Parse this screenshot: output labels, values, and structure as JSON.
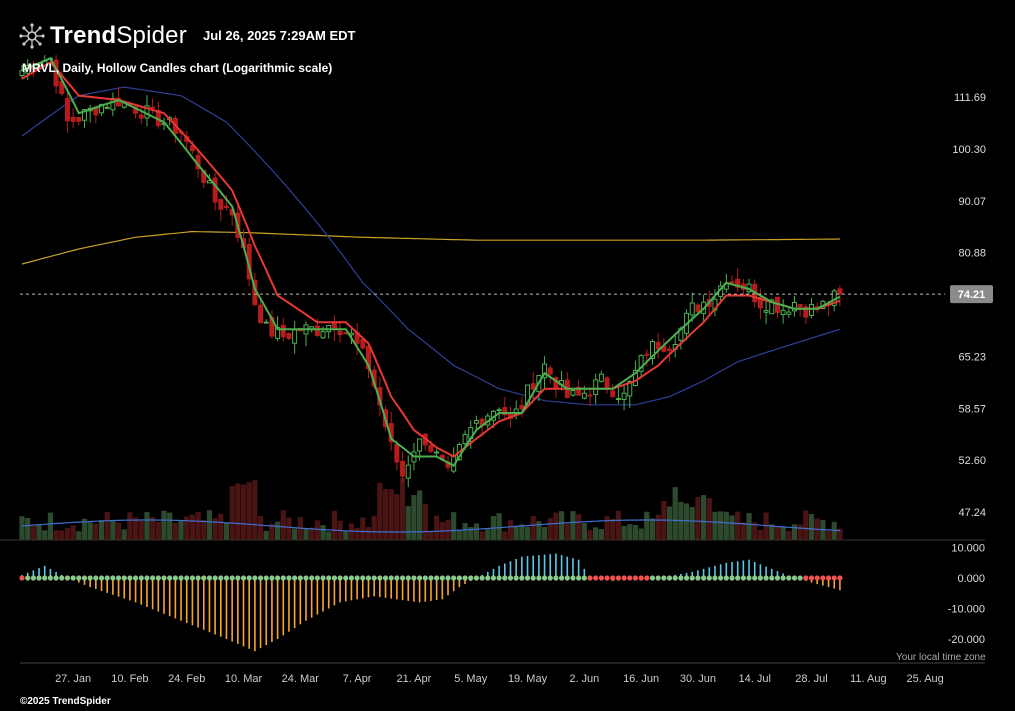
{
  "header": {
    "brand_bold": "Trend",
    "brand_light": "Spider",
    "datetime": "Jul 26, 2025 7:29AM EDT",
    "chart_title": "MRVL, Daily, Hollow Candles chart (Logarithmic scale)"
  },
  "footer": {
    "copyright": "©2025 TrendSpider",
    "timezone_note": "Your local time zone"
  },
  "colors": {
    "background": "#000000",
    "bullish": "#4caf50",
    "bearish": "#b71c1c",
    "ema_fast": "#4caf50",
    "ema_slow": "#e53935",
    "sma_blue": "#2f3f9a",
    "sma_gold": "#c9a227",
    "osc_pos": "#5bc8e8",
    "osc_neg": "#f7a530",
    "dot_green": "#8bc98b",
    "dot_red": "#ef5350",
    "price_badge": "#8a8a8a"
  },
  "chart_data": {
    "type": "candlestick",
    "scale": "log",
    "symbol": "MRVL",
    "interval": "Daily",
    "style": "Hollow Candles",
    "y_ticks": [
      111.69,
      100.3,
      90.07,
      80.88,
      65.23,
      58.57,
      52.6,
      47.24
    ],
    "y_tick_labels": [
      "111.69",
      "100.30",
      "90.07",
      "80.88",
      "65.23",
      "58.57",
      "52.60",
      "47.24"
    ],
    "last_price": 74.21,
    "last_price_label": "74.21",
    "x_labels": [
      "27. Jan",
      "10. Feb",
      "24. Feb",
      "10. Mar",
      "24. Mar",
      "7. Apr",
      "21. Apr",
      "5. May",
      "19. May",
      "2. Jun",
      "16. Jun",
      "30. Jun",
      "14. Jul",
      "28. Jul",
      "11. Aug",
      "25. Aug"
    ],
    "close_anchors": [
      [
        0,
        118
      ],
      [
        2,
        120
      ],
      [
        5,
        121
      ],
      [
        8,
        106
      ],
      [
        10,
        107
      ],
      [
        14,
        110
      ],
      [
        17,
        111
      ],
      [
        22,
        108
      ],
      [
        25,
        106
      ],
      [
        28,
        104
      ],
      [
        31,
        97
      ],
      [
        34,
        90
      ],
      [
        37,
        88
      ],
      [
        39,
        81
      ],
      [
        41,
        73
      ],
      [
        43,
        69
      ],
      [
        46,
        68
      ],
      [
        49,
        69
      ],
      [
        52,
        69
      ],
      [
        55,
        70
      ],
      [
        58,
        68
      ],
      [
        61,
        64
      ],
      [
        63,
        59
      ],
      [
        65,
        54
      ],
      [
        67,
        51
      ],
      [
        69,
        54
      ],
      [
        71,
        55
      ],
      [
        73,
        53
      ],
      [
        75,
        51
      ],
      [
        78,
        55
      ],
      [
        80,
        57
      ],
      [
        82,
        58
      ],
      [
        84,
        59
      ],
      [
        86,
        57
      ],
      [
        88,
        59
      ],
      [
        90,
        62
      ],
      [
        92,
        64
      ],
      [
        94,
        62
      ],
      [
        96,
        60
      ],
      [
        98,
        60
      ],
      [
        100,
        61
      ],
      [
        102,
        62
      ],
      [
        104,
        61
      ],
      [
        106,
        60
      ],
      [
        108,
        63
      ],
      [
        110,
        66
      ],
      [
        112,
        67
      ],
      [
        114,
        67
      ],
      [
        116,
        69
      ],
      [
        118,
        72
      ],
      [
        120,
        73
      ],
      [
        122,
        74
      ],
      [
        124,
        77
      ],
      [
        126,
        76
      ],
      [
        128,
        75
      ],
      [
        130,
        73
      ],
      [
        132,
        73
      ],
      [
        134,
        72
      ],
      [
        136,
        73
      ],
      [
        138,
        72
      ],
      [
        140,
        72
      ],
      [
        142,
        73
      ],
      [
        144,
        74.21
      ]
    ],
    "ema_fast_anchors": [
      [
        0,
        118
      ],
      [
        5,
        121
      ],
      [
        10,
        108
      ],
      [
        17,
        111
      ],
      [
        25,
        106
      ],
      [
        31,
        97
      ],
      [
        37,
        89
      ],
      [
        41,
        75
      ],
      [
        45,
        69
      ],
      [
        52,
        69
      ],
      [
        57,
        69
      ],
      [
        61,
        64
      ],
      [
        65,
        55
      ],
      [
        69,
        53
      ],
      [
        73,
        53
      ],
      [
        76,
        52
      ],
      [
        80,
        56
      ],
      [
        84,
        58
      ],
      [
        88,
        58
      ],
      [
        92,
        63
      ],
      [
        96,
        61
      ],
      [
        100,
        61
      ],
      [
        104,
        61
      ],
      [
        108,
        63
      ],
      [
        112,
        66
      ],
      [
        116,
        69
      ],
      [
        120,
        72
      ],
      [
        124,
        76
      ],
      [
        128,
        75
      ],
      [
        132,
        73
      ],
      [
        136,
        72
      ],
      [
        140,
        72
      ],
      [
        144,
        73.8
      ]
    ],
    "ema_slow_anchors": [
      [
        0,
        116
      ],
      [
        5,
        120
      ],
      [
        10,
        112
      ],
      [
        17,
        111
      ],
      [
        25,
        108
      ],
      [
        31,
        100
      ],
      [
        37,
        92
      ],
      [
        41,
        82
      ],
      [
        45,
        74
      ],
      [
        52,
        70
      ],
      [
        57,
        70
      ],
      [
        61,
        67
      ],
      [
        65,
        60
      ],
      [
        69,
        56
      ],
      [
        73,
        54
      ],
      [
        76,
        53
      ],
      [
        80,
        55
      ],
      [
        84,
        57
      ],
      [
        88,
        58
      ],
      [
        92,
        61
      ],
      [
        96,
        61
      ],
      [
        100,
        61
      ],
      [
        104,
        61
      ],
      [
        108,
        62
      ],
      [
        112,
        64
      ],
      [
        116,
        67
      ],
      [
        120,
        70
      ],
      [
        124,
        74
      ],
      [
        128,
        74
      ],
      [
        132,
        73
      ],
      [
        136,
        72
      ],
      [
        140,
        72
      ],
      [
        144,
        73.2
      ]
    ],
    "sma_blue_anchors": [
      [
        0,
        103
      ],
      [
        10,
        112
      ],
      [
        18,
        114
      ],
      [
        28,
        112
      ],
      [
        36,
        106
      ],
      [
        44,
        96
      ],
      [
        52,
        86
      ],
      [
        60,
        76
      ],
      [
        68,
        69
      ],
      [
        76,
        64
      ],
      [
        84,
        61
      ],
      [
        92,
        59.5
      ],
      [
        100,
        59
      ],
      [
        108,
        59
      ],
      [
        114,
        60
      ],
      [
        120,
        62
      ],
      [
        126,
        64.5
      ],
      [
        132,
        66
      ],
      [
        138,
        67.5
      ],
      [
        144,
        69
      ]
    ],
    "sma_gold_anchors": [
      [
        0,
        79
      ],
      [
        10,
        81.5
      ],
      [
        20,
        83.5
      ],
      [
        30,
        84.5
      ],
      [
        40,
        84.3
      ],
      [
        60,
        83.5
      ],
      [
        80,
        83
      ],
      [
        100,
        83
      ],
      [
        120,
        83
      ],
      [
        144,
        83.2
      ]
    ],
    "volume_profile": "stepped bars, heavy spikes near early April and late June",
    "oscillator": {
      "y_ticks": [
        10,
        0,
        -10,
        -20
      ],
      "y_tick_labels": [
        "10.000",
        "0.000",
        "-10.000",
        "-20.000"
      ],
      "anchors": [
        [
          0,
          1
        ],
        [
          4,
          4
        ],
        [
          8,
          0
        ],
        [
          12,
          -3
        ],
        [
          20,
          -8
        ],
        [
          28,
          -14
        ],
        [
          36,
          -20
        ],
        [
          41,
          -24
        ],
        [
          45,
          -20
        ],
        [
          50,
          -14
        ],
        [
          56,
          -8
        ],
        [
          62,
          -6
        ],
        [
          66,
          -7
        ],
        [
          70,
          -8
        ],
        [
          74,
          -7
        ],
        [
          77,
          -3
        ],
        [
          80,
          0
        ],
        [
          84,
          4
        ],
        [
          88,
          7
        ],
        [
          94,
          8
        ],
        [
          98,
          6
        ],
        [
          100,
          0
        ],
        [
          104,
          -1
        ],
        [
          112,
          0
        ],
        [
          118,
          2
        ],
        [
          124,
          5
        ],
        [
          128,
          6
        ],
        [
          132,
          3
        ],
        [
          136,
          0
        ],
        [
          140,
          -2
        ],
        [
          144,
          -4
        ]
      ]
    }
  }
}
